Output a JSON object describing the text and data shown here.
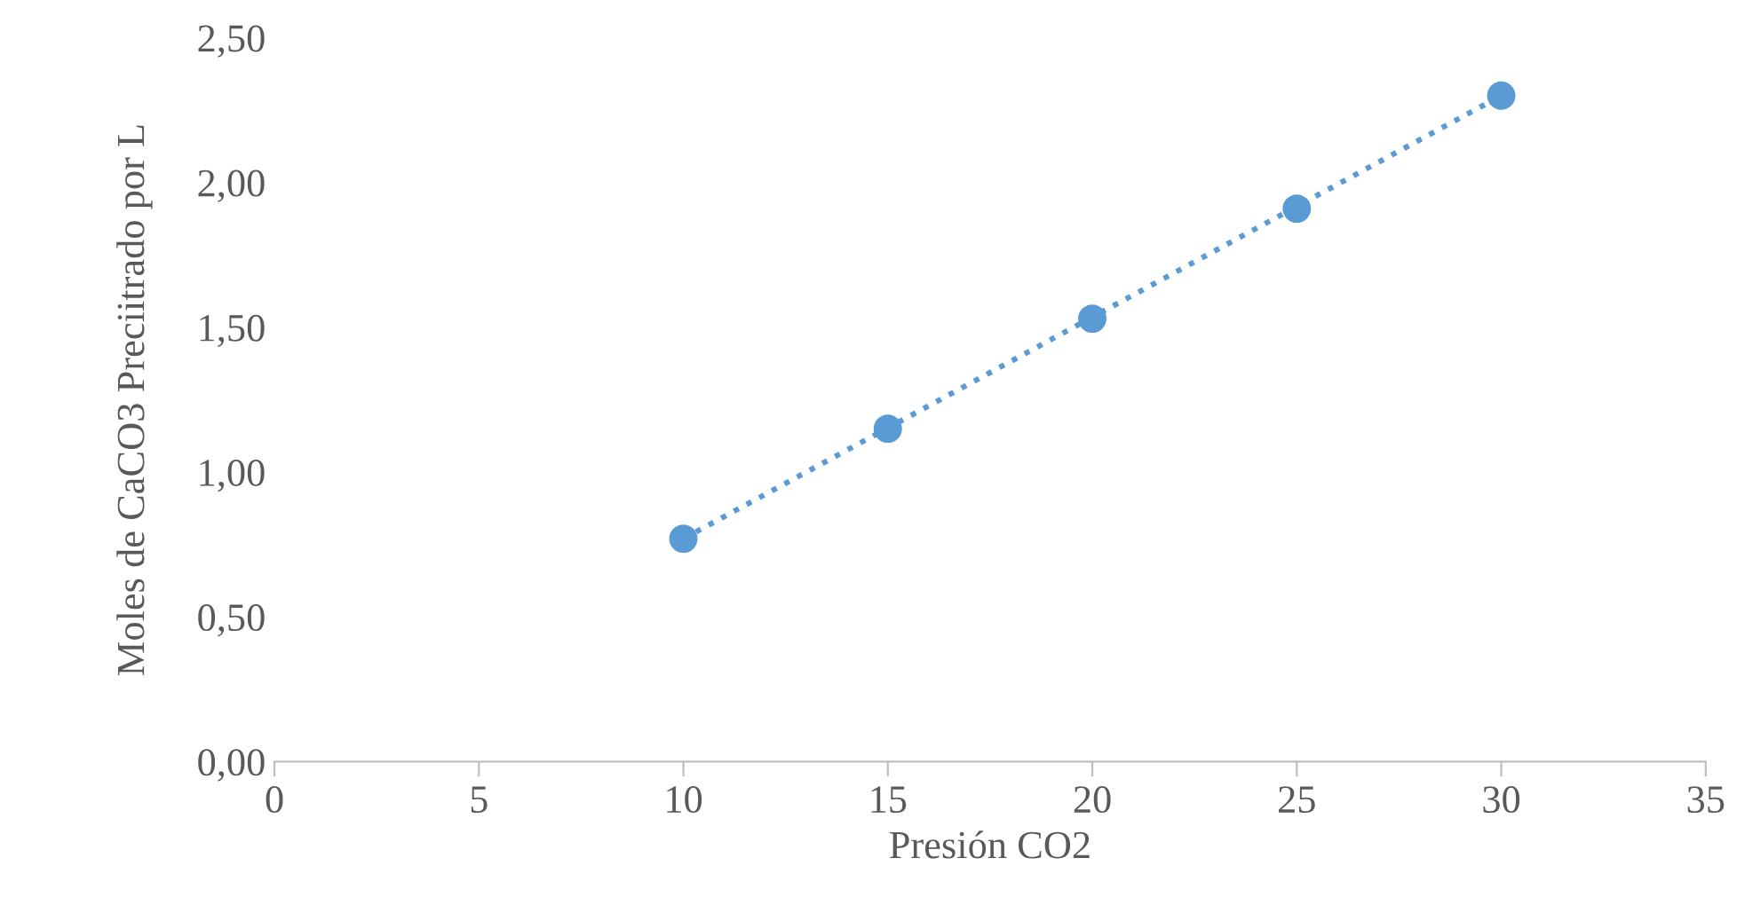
{
  "chart_data": {
    "type": "scatter",
    "xlabel": "Presión CO2",
    "ylabel": "Moles de CaCO3 Preciitrado por L",
    "series": [
      {
        "type": "line",
        "color": "#5b9bd5",
        "x": [
          10,
          30
        ],
        "values": [
          0.77,
          2.3
        ],
        "line_style": "dotted",
        "marker": "none"
      },
      {
        "color": "#5b9bd5",
        "x": [
          10,
          15,
          20,
          25,
          30
        ],
        "values": [
          0.77,
          1.15,
          1.53,
          1.91,
          2.3
        ],
        "marker": "circle"
      }
    ],
    "xlim": [
      0,
      35
    ],
    "xticks": [
      0,
      5,
      10,
      15,
      20,
      25,
      30,
      35
    ],
    "ylim": [
      0,
      2.5
    ],
    "yticks": [
      {
        "value": 0,
        "label": "0,00"
      },
      {
        "value": 0.5,
        "label": "0,50"
      },
      {
        "value": 1.0,
        "label": "1,00"
      },
      {
        "value": 1.5,
        "label": "1,50"
      },
      {
        "value": 2.0,
        "label": "2,00"
      },
      {
        "value": 2.5,
        "label": "2,50"
      }
    ],
    "grid": false,
    "legend": false
  }
}
